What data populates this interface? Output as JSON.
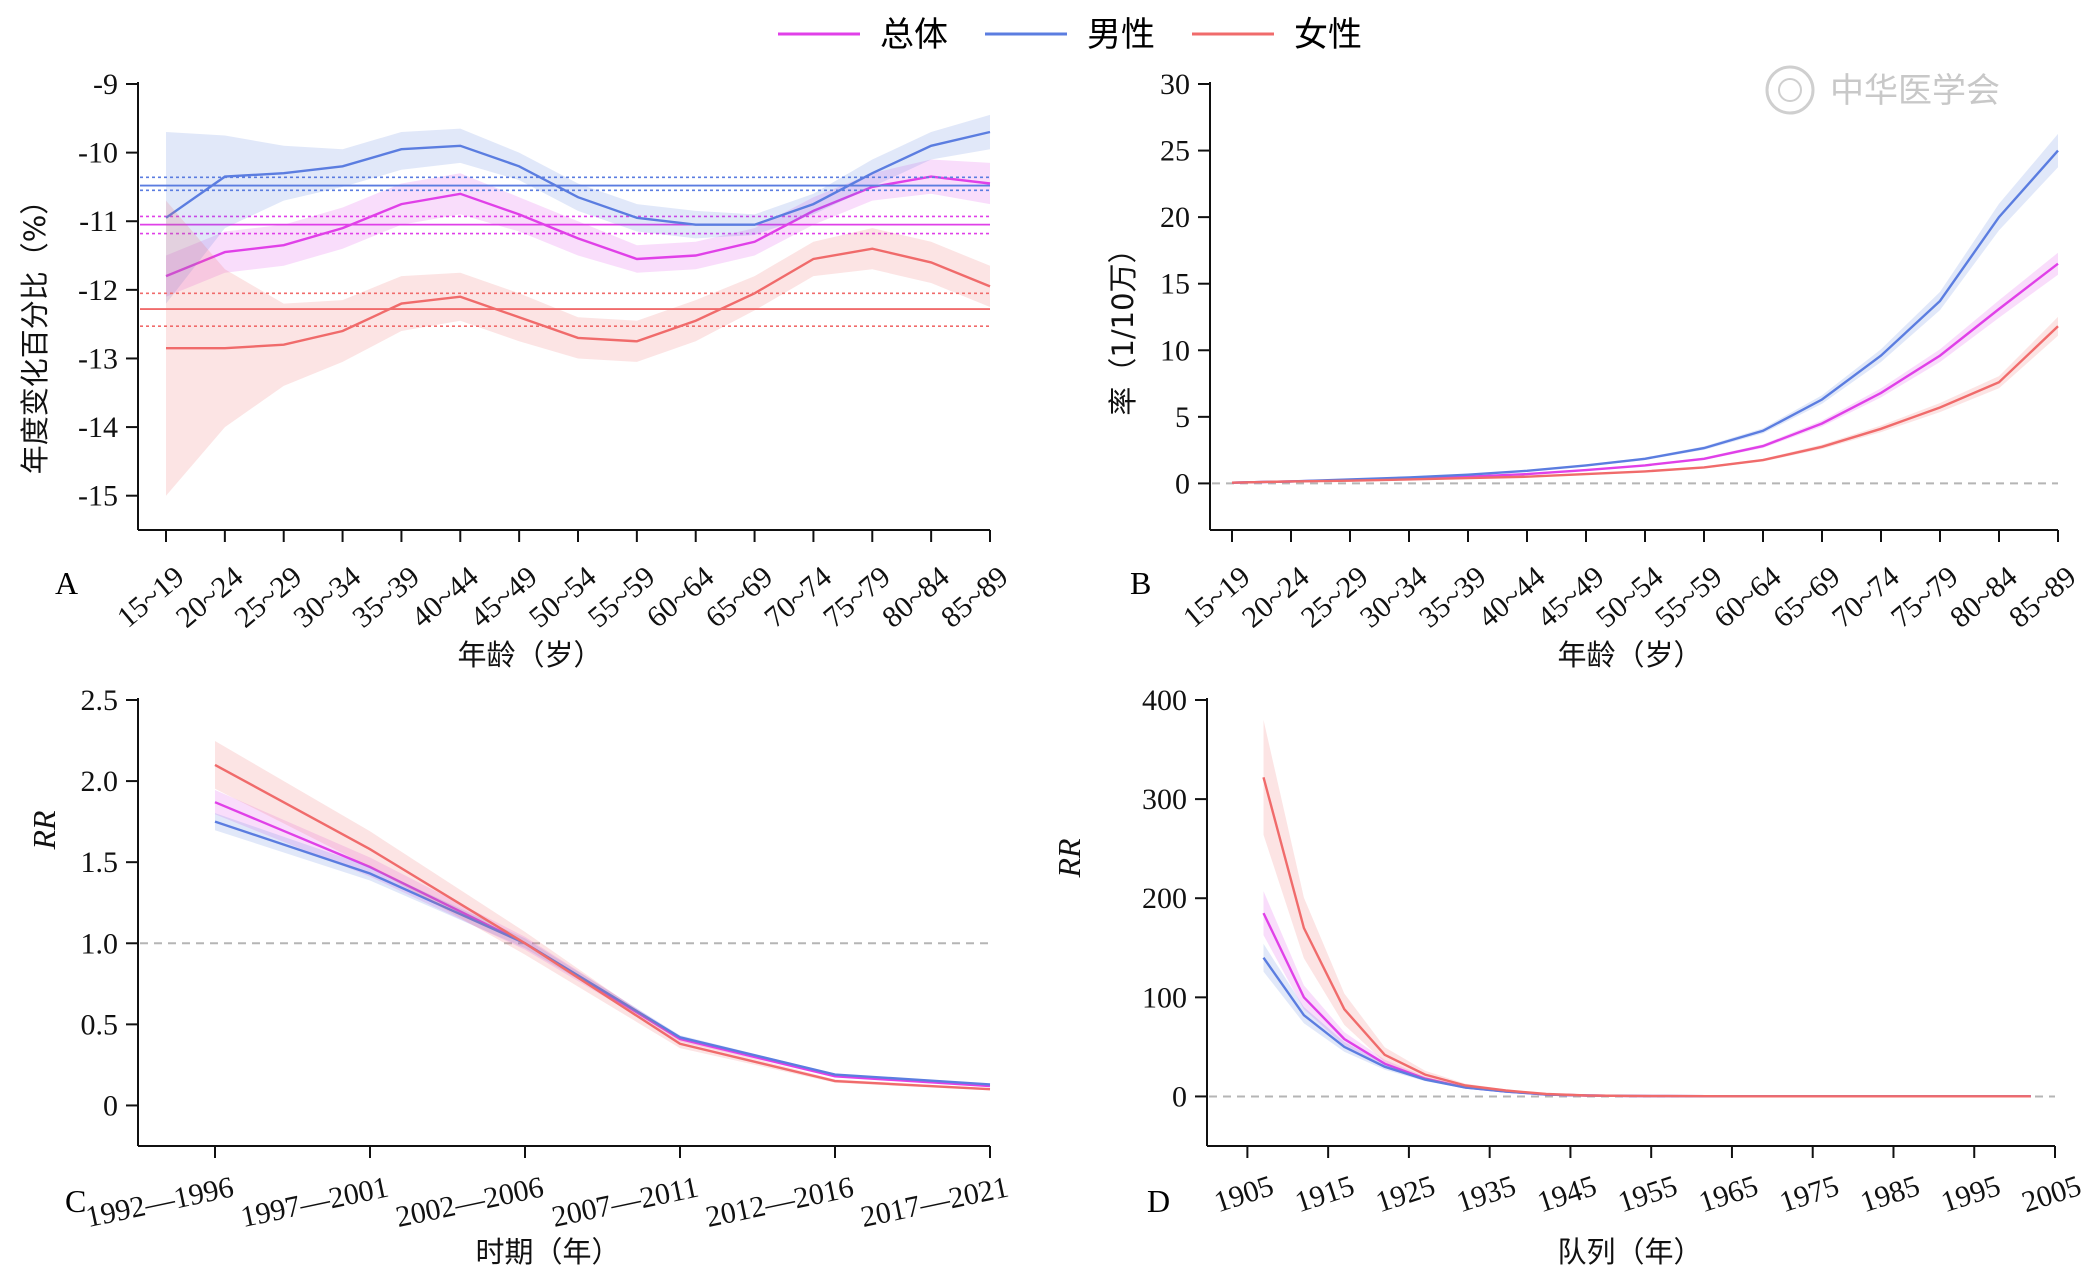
{
  "legend": {
    "entries": [
      {
        "label": "总体",
        "color": "#e040e8"
      },
      {
        "label": "男性",
        "color": "#5b7de0"
      },
      {
        "label": "女性",
        "color": "#f06b6b"
      }
    ]
  },
  "watermark": {
    "text": "中华医学会"
  },
  "chart_data": [
    {
      "panel": "A",
      "type": "line",
      "xlabel": "年龄（岁）",
      "ylabel": "年度变化百分比（%）",
      "categories": [
        "15~19",
        "20~24",
        "25~29",
        "30~34",
        "35~39",
        "40~44",
        "45~49",
        "50~54",
        "55~59",
        "60~64",
        "65~69",
        "70~74",
        "75~79",
        "80~84",
        "85~89"
      ],
      "ylim": [
        -15.5,
        -9
      ],
      "yticks": [
        "-9",
        "-10",
        "-11",
        "-12",
        "-13",
        "-14",
        "-15"
      ],
      "series": [
        {
          "name": "总体",
          "color": "#e040e8",
          "values": [
            -11.8,
            -11.45,
            -11.35,
            -11.1,
            -10.75,
            -10.6,
            -10.9,
            -11.25,
            -11.55,
            -11.5,
            -11.3,
            -10.85,
            -10.5,
            -10.35,
            -10.45
          ],
          "lower": [
            -12.1,
            -11.75,
            -11.65,
            -11.4,
            -11.05,
            -10.9,
            -11.15,
            -11.5,
            -11.75,
            -11.7,
            -11.5,
            -11.05,
            -10.7,
            -10.6,
            -10.75
          ],
          "upper": [
            -11.5,
            -11.15,
            -11.05,
            -10.8,
            -10.45,
            -10.3,
            -10.65,
            -11.0,
            -11.35,
            -11.3,
            -11.1,
            -10.65,
            -10.3,
            -10.1,
            -10.15
          ],
          "net_drift": -11.05,
          "net_drift_ci": [
            -11.18,
            -10.93
          ]
        },
        {
          "name": "男性",
          "color": "#5b7de0",
          "values": [
            -10.95,
            -10.35,
            -10.3,
            -10.2,
            -9.95,
            -9.9,
            -10.2,
            -10.65,
            -10.95,
            -11.05,
            -11.05,
            -10.75,
            -10.3,
            -9.9,
            -9.7
          ],
          "lower": [
            -12.2,
            -11.1,
            -10.7,
            -10.5,
            -10.25,
            -10.15,
            -10.4,
            -10.85,
            -11.15,
            -11.25,
            -11.2,
            -10.9,
            -10.5,
            -10.1,
            -9.95
          ],
          "upper": [
            -9.7,
            -9.75,
            -9.9,
            -9.95,
            -9.7,
            -9.65,
            -10.0,
            -10.45,
            -10.75,
            -10.85,
            -10.9,
            -10.6,
            -10.1,
            -9.7,
            -9.45
          ],
          "net_drift": -10.48,
          "net_drift_ci": [
            -10.55,
            -10.36
          ]
        },
        {
          "name": "女性",
          "color": "#f06b6b",
          "values": [
            -12.85,
            -12.85,
            -12.8,
            -12.6,
            -12.2,
            -12.1,
            -12.4,
            -12.7,
            -12.75,
            -12.45,
            -12.05,
            -11.55,
            -11.4,
            -11.6,
            -11.95
          ],
          "lower": [
            -15.0,
            -14.0,
            -13.4,
            -13.05,
            -12.6,
            -12.45,
            -12.75,
            -13.0,
            -13.05,
            -12.75,
            -12.3,
            -11.8,
            -11.7,
            -11.9,
            -12.25
          ],
          "upper": [
            -10.7,
            -11.7,
            -12.2,
            -12.15,
            -11.8,
            -11.75,
            -12.05,
            -12.4,
            -12.45,
            -12.15,
            -11.8,
            -11.3,
            -11.1,
            -11.3,
            -11.65
          ],
          "net_drift": -12.28,
          "net_drift_ci": [
            -12.53,
            -12.05
          ]
        }
      ]
    },
    {
      "panel": "B",
      "type": "line",
      "xlabel": "年龄（岁）",
      "ylabel": "率（1/10万）",
      "categories": [
        "15~19",
        "20~24",
        "25~29",
        "30~34",
        "35~39",
        "40~44",
        "45~49",
        "50~54",
        "55~59",
        "60~64",
        "65~69",
        "70~74",
        "75~79",
        "80~84",
        "85~89"
      ],
      "ylim": [
        -3.5,
        30
      ],
      "yticks": [
        "30",
        "25",
        "20",
        "15",
        "10",
        "5",
        "0"
      ],
      "series": [
        {
          "name": "总体",
          "color": "#e040e8",
          "values": [
            0.05,
            0.15,
            0.25,
            0.35,
            0.5,
            0.7,
            1.0,
            1.35,
            1.85,
            2.8,
            4.5,
            6.8,
            9.6,
            13.1,
            16.5
          ],
          "band": 0.05
        },
        {
          "name": "男性",
          "color": "#5b7de0",
          "values": [
            0.05,
            0.15,
            0.3,
            0.45,
            0.65,
            0.95,
            1.35,
            1.85,
            2.65,
            3.95,
            6.3,
            9.6,
            13.7,
            20.0,
            25.0
          ],
          "band": 0.05
        },
        {
          "name": "女性",
          "color": "#f06b6b",
          "values": [
            0.05,
            0.15,
            0.2,
            0.3,
            0.4,
            0.5,
            0.7,
            0.9,
            1.2,
            1.75,
            2.75,
            4.1,
            5.7,
            7.6,
            11.8
          ],
          "band": 0.06
        }
      ]
    },
    {
      "panel": "C",
      "type": "line",
      "xlabel": "时期（年）",
      "ylabel": "RR",
      "categories": [
        "1992—1996",
        "1997—2001",
        "2002—2006",
        "2007—2011",
        "2012—2016",
        "2017—2021"
      ],
      "ylim": [
        -0.25,
        2.5
      ],
      "yticks": [
        "2.5",
        "2.0",
        "1.5",
        "1.0",
        "0.5",
        "0"
      ],
      "reference_line": 1.0,
      "series": [
        {
          "name": "总体",
          "color": "#e040e8",
          "values": [
            1.87,
            1.47,
            1.0,
            0.41,
            0.18,
            0.12
          ],
          "band": 0.04
        },
        {
          "name": "男性",
          "color": "#5b7de0",
          "values": [
            1.75,
            1.43,
            1.0,
            0.42,
            0.19,
            0.13
          ],
          "band": 0.03
        },
        {
          "name": "女性",
          "color": "#f06b6b",
          "values": [
            2.1,
            1.58,
            1.0,
            0.38,
            0.15,
            0.1
          ],
          "band": 0.07
        }
      ]
    },
    {
      "panel": "D",
      "type": "line",
      "xlabel": "队列（年）",
      "ylabel": "RR",
      "x": [
        1907,
        1912,
        1917,
        1922,
        1927,
        1932,
        1937,
        1942,
        1947,
        1952,
        1957,
        1962,
        1967,
        1972,
        1977,
        1982,
        1987,
        1992,
        1997,
        2002
      ],
      "xticks": [
        "1905",
        "1915",
        "1925",
        "1935",
        "1945",
        "1955",
        "1965",
        "1975",
        "1985",
        "1995",
        "2005"
      ],
      "xlim": [
        1900,
        2005
      ],
      "ylim": [
        -50,
        400
      ],
      "yticks": [
        "400",
        "300",
        "200",
        "100",
        "0"
      ],
      "reference_line": 0,
      "series": [
        {
          "name": "总体",
          "color": "#e040e8",
          "values": [
            185,
            100,
            58,
            33,
            18,
            9,
            5,
            2,
            1,
            0.5,
            0.3,
            0.2,
            0.1,
            0.1,
            0.1,
            0.1,
            0.1,
            0.1,
            0.1,
            0.1
          ],
          "band_rel": 0.12
        },
        {
          "name": "男性",
          "color": "#5b7de0",
          "values": [
            140,
            82,
            50,
            30,
            17,
            9,
            5,
            2,
            1,
            0.5,
            0.3,
            0.2,
            0.1,
            0.1,
            0.1,
            0.1,
            0.1,
            0.1,
            0.1,
            0.1
          ],
          "band_rel": 0.1
        },
        {
          "name": "女性",
          "color": "#f06b6b",
          "values": [
            322,
            170,
            88,
            42,
            22,
            11,
            6,
            2.5,
            1,
            0.5,
            0.3,
            0.2,
            0.1,
            0.1,
            0.1,
            0.1,
            0.1,
            0.1,
            0.1,
            0.1
          ],
          "band_rel": 0.18
        }
      ]
    }
  ]
}
